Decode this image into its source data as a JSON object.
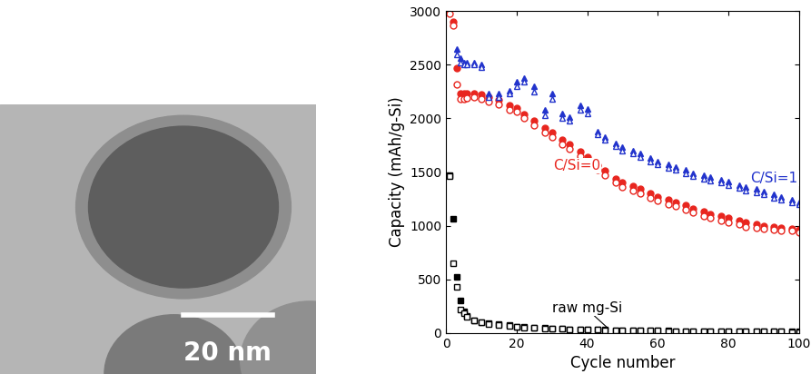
{
  "micrograph": {
    "scale_bar": "20 nm"
  },
  "chart_data": {
    "type": "scatter",
    "x_label": "Cycle number",
    "y_label": "Capacity (mAh/g-Si)",
    "xlim": [
      0,
      100
    ],
    "xticks": [
      0,
      20,
      40,
      60,
      80,
      100
    ],
    "ylim": [
      0,
      3000
    ],
    "yticks": [
      0,
      500,
      1000,
      1500,
      2000,
      2500,
      3000
    ],
    "x": [
      1,
      2,
      3,
      4,
      5,
      6,
      8,
      10,
      12,
      15,
      18,
      20,
      22,
      25,
      28,
      30,
      33,
      35,
      38,
      40,
      43,
      45,
      48,
      50,
      53,
      55,
      58,
      60,
      63,
      65,
      68,
      70,
      73,
      75,
      78,
      80,
      83,
      85,
      88,
      90,
      93,
      95,
      98,
      100
    ],
    "series": [
      {
        "name": "C/Si=0",
        "color": "#e8261f",
        "marker": "circle",
        "values": [
          null,
          2900,
          2470,
          2230,
          2230,
          2230,
          2230,
          2220,
          2200,
          2170,
          2120,
          2100,
          2040,
          1980,
          1910,
          1870,
          1800,
          1760,
          1690,
          1640,
          1560,
          1510,
          1440,
          1400,
          1370,
          1340,
          1300,
          1270,
          1240,
          1220,
          1190,
          1160,
          1130,
          1110,
          1090,
          1070,
          1050,
          1030,
          1010,
          1000,
          990,
          980,
          970,
          960
        ],
        "values2": [
          2980,
          2870,
          2320,
          2180,
          2180,
          2190,
          2200,
          2180,
          2160,
          2130,
          2080,
          2060,
          2000,
          1940,
          1870,
          1830,
          1760,
          1720,
          1650,
          1600,
          1520,
          1470,
          1400,
          1360,
          1330,
          1300,
          1260,
          1230,
          1200,
          1180,
          1150,
          1120,
          1090,
          1070,
          1050,
          1030,
          1010,
          990,
          980,
          970,
          960,
          950,
          950,
          940
        ]
      },
      {
        "name": "C/Si=1",
        "color": "#2233cc",
        "marker": "triangle",
        "values": [
          null,
          null,
          2650,
          2560,
          2520,
          2520,
          2520,
          2500,
          2230,
          2230,
          2260,
          2340,
          2380,
          2300,
          2080,
          2230,
          2050,
          2010,
          2120,
          2090,
          1880,
          1830,
          1770,
          1730,
          1700,
          1670,
          1630,
          1600,
          1570,
          1550,
          1520,
          1490,
          1470,
          1450,
          1430,
          1410,
          1380,
          1360,
          1340,
          1320,
          1290,
          1270,
          1240,
          1220
        ],
        "values2": [
          null,
          null,
          2600,
          2520,
          2500,
          2500,
          2500,
          2480,
          2200,
          2200,
          2230,
          2300,
          2340,
          2250,
          2030,
          2180,
          2000,
          1980,
          2080,
          2050,
          1850,
          1800,
          1740,
          1700,
          1670,
          1640,
          1600,
          1570,
          1540,
          1520,
          1490,
          1460,
          1440,
          1420,
          1400,
          1380,
          1350,
          1330,
          1310,
          1290,
          1260,
          1240,
          1220,
          1200
        ]
      },
      {
        "name": "raw mg-Si",
        "color": "#000000",
        "marker": "square",
        "values": [
          1470,
          1060,
          520,
          300,
          200,
          160,
          120,
          100,
          90,
          80,
          70,
          60,
          55,
          50,
          45,
          40,
          38,
          35,
          33,
          30,
          28,
          27,
          25,
          24,
          23,
          22,
          21,
          20,
          19,
          18,
          17,
          16,
          15,
          15,
          14,
          14,
          13,
          13,
          12,
          12,
          11,
          11,
          10,
          10
        ],
        "values2": [
          1460,
          650,
          430,
          220,
          180,
          150,
          115,
          95,
          85,
          75,
          65,
          58,
          52,
          48,
          43,
          38,
          36,
          33,
          31,
          29,
          27,
          26,
          24,
          23,
          22,
          21,
          20,
          19,
          18,
          17,
          16,
          15,
          14,
          14,
          13,
          13,
          12,
          12,
          11,
          11,
          10,
          10,
          9,
          9
        ]
      }
    ]
  }
}
